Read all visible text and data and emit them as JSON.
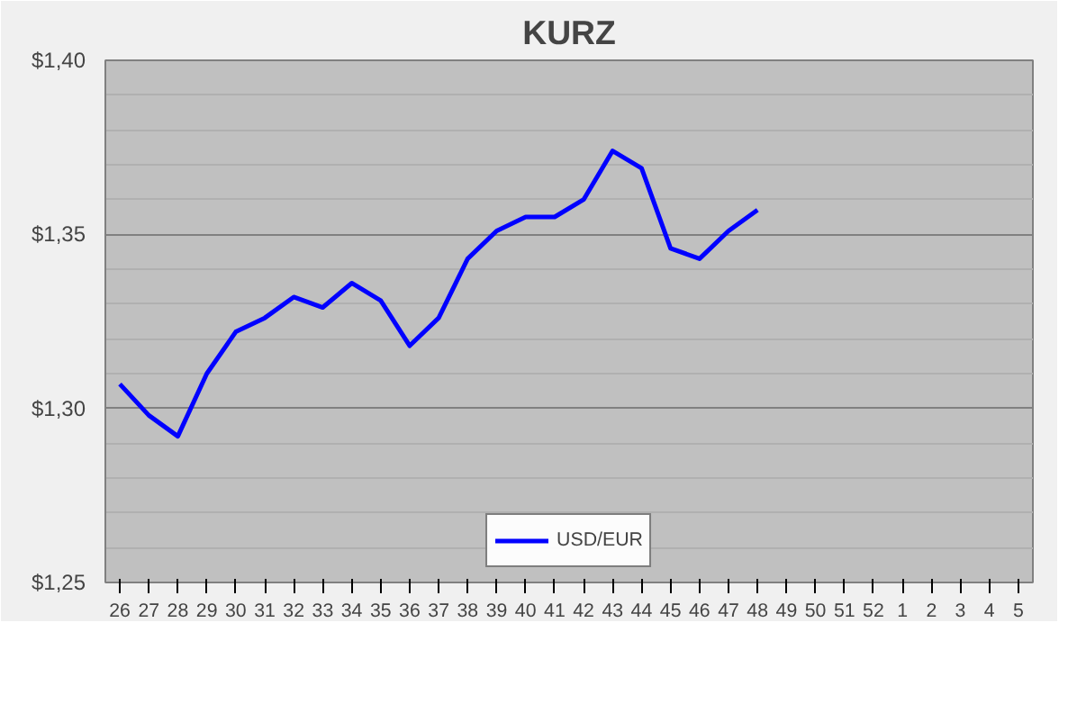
{
  "chart_data": {
    "type": "line",
    "title": "KURZ",
    "categories": [
      "26",
      "27",
      "28",
      "29",
      "30",
      "31",
      "32",
      "33",
      "34",
      "35",
      "36",
      "37",
      "38",
      "39",
      "40",
      "41",
      "42",
      "43",
      "44",
      "45",
      "46",
      "47",
      "48",
      "49",
      "50",
      "51",
      "52",
      "1",
      "2",
      "3",
      "4",
      "5"
    ],
    "series": [
      {
        "name": "USD/EUR",
        "color": "#0000ff",
        "values": [
          1.307,
          1.298,
          1.292,
          1.31,
          1.322,
          1.326,
          1.332,
          1.329,
          1.336,
          1.331,
          1.318,
          1.326,
          1.343,
          1.351,
          1.355,
          1.355,
          1.36,
          1.374,
          1.369,
          1.346,
          1.343,
          1.351,
          1.357,
          null,
          null,
          null,
          null,
          null,
          null,
          null,
          null,
          null
        ]
      }
    ],
    "ylim": [
      1.25,
      1.4
    ],
    "yticks": [
      {
        "value": 1.25,
        "label": "$1,25"
      },
      {
        "value": 1.3,
        "label": "$1,30"
      },
      {
        "value": 1.35,
        "label": "$1,35"
      },
      {
        "value": 1.4,
        "label": "$1,40"
      }
    ],
    "grid": "y",
    "legend": "bottom",
    "marker": "none",
    "line_style": "solid"
  }
}
